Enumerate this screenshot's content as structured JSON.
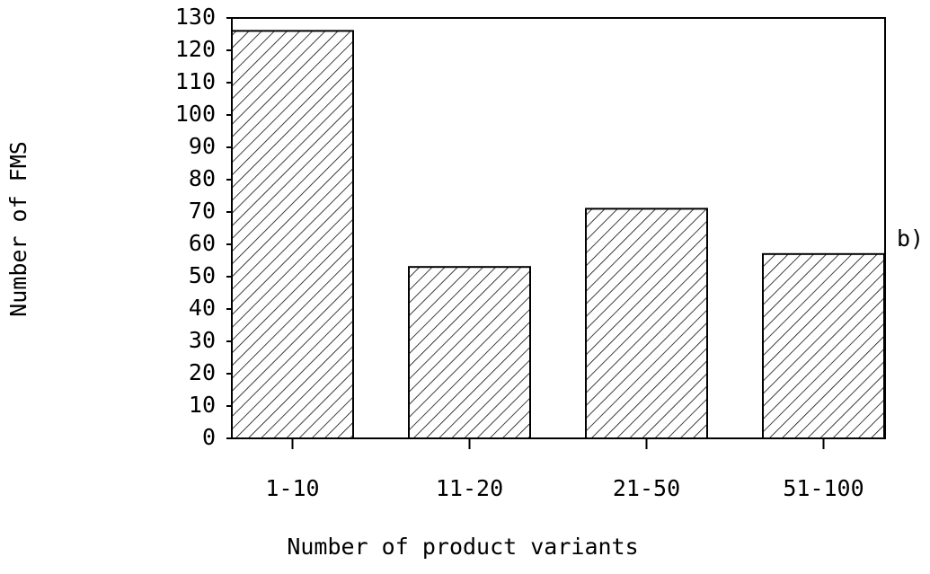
{
  "chart_data": {
    "type": "bar",
    "categories": [
      "1-10",
      "11-20",
      "21-50",
      "51-100"
    ],
    "values": [
      126,
      53,
      71,
      57
    ],
    "color": "#000000",
    "xlabel": "Number of product variants",
    "ylabel": "Number of FMS",
    "annotation": "b)",
    "ylim": [
      0,
      130
    ],
    "yticks": [
      0,
      10,
      20,
      30,
      40,
      50,
      60,
      70,
      80,
      90,
      100,
      110,
      120,
      130
    ]
  }
}
